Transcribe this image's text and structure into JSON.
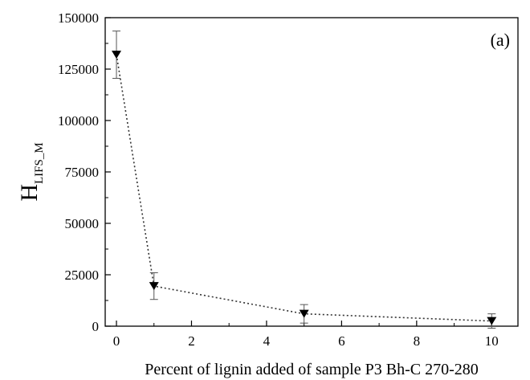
{
  "chart_data": {
    "type": "line",
    "panel_label": "(a)",
    "xlabel": "Percent of lignin added of sample P3 Bh-C 270-280",
    "ylabel": {
      "main": "H",
      "subscript": "LIFS_M"
    },
    "xlim": [
      -0.3,
      10.7
    ],
    "ylim": [
      0,
      150000
    ],
    "x_ticks": [
      0,
      2,
      4,
      6,
      8,
      10
    ],
    "x_tick_labels": [
      "0",
      "2",
      "4",
      "6",
      "8",
      "10"
    ],
    "y_ticks": [
      0,
      25000,
      50000,
      75000,
      100000,
      125000,
      150000
    ],
    "y_tick_labels": [
      "0",
      "25000",
      "50000",
      "75000",
      "100000",
      "125000",
      "150000"
    ],
    "marker": "down-triangle",
    "line_style": "dotted",
    "grid": false,
    "series": [
      {
        "x": [
          0,
          1,
          5,
          10
        ],
        "y": [
          132000,
          19500,
          6000,
          2500
        ],
        "yerr": [
          11500,
          6500,
          4500,
          3500
        ]
      }
    ]
  }
}
